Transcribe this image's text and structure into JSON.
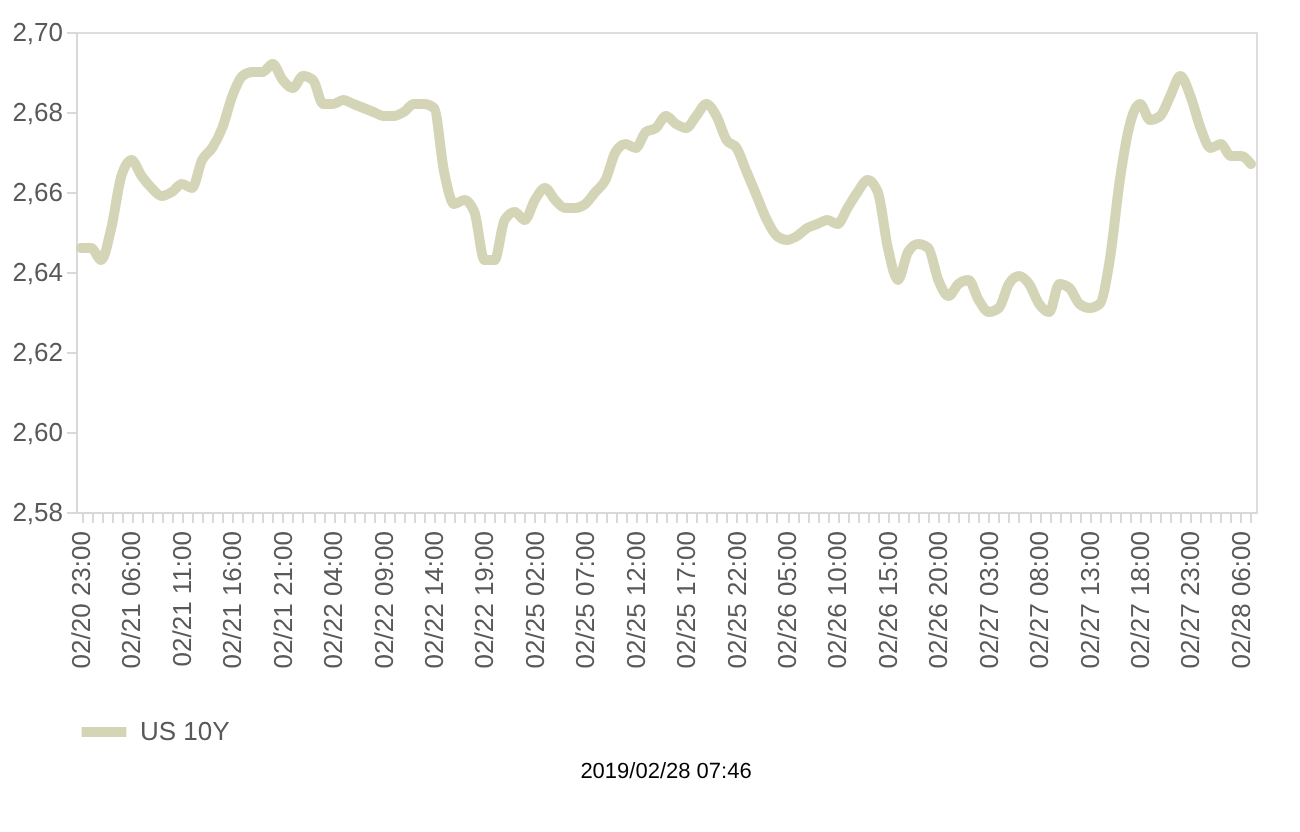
{
  "chart_data": {
    "type": "line",
    "categories": [
      "02/20 23:00",
      null,
      null,
      null,
      null,
      "02/21 06:00",
      null,
      null,
      null,
      null,
      "02/21 11:00",
      null,
      null,
      null,
      null,
      "02/21 16:00",
      null,
      null,
      null,
      null,
      "02/21 21:00",
      null,
      null,
      null,
      null,
      "02/22 04:00",
      null,
      null,
      null,
      null,
      "02/22 09:00",
      null,
      null,
      null,
      null,
      "02/22 14:00",
      null,
      null,
      null,
      null,
      "02/22 19:00",
      null,
      null,
      null,
      null,
      "02/25 02:00",
      null,
      null,
      null,
      null,
      "02/25 07:00",
      null,
      null,
      null,
      null,
      "02/25 12:00",
      null,
      null,
      null,
      null,
      "02/25 17:00",
      null,
      null,
      null,
      null,
      "02/25 22:00",
      null,
      null,
      null,
      null,
      "02/26 05:00",
      null,
      null,
      null,
      null,
      "02/26 10:00",
      null,
      null,
      null,
      null,
      "02/26 15:00",
      null,
      null,
      null,
      null,
      "02/26 20:00",
      null,
      null,
      null,
      null,
      "02/27 03:00",
      null,
      null,
      null,
      null,
      "02/27 08:00",
      null,
      null,
      null,
      null,
      "02/27 13:00",
      null,
      null,
      null,
      null,
      "02/27 18:00",
      null,
      null,
      null,
      null,
      "02/27 23:00",
      null,
      null,
      null,
      null,
      "02/28 06:00",
      null
    ],
    "series": [
      {
        "name": "US 10Y",
        "color": "#d4d5b6",
        "values": [
          2.646,
          2.646,
          2.643,
          2.651,
          2.664,
          2.668,
          2.664,
          2.661,
          2.659,
          2.66,
          2.662,
          2.661,
          2.668,
          2.671,
          2.676,
          2.684,
          2.689,
          2.69,
          2.69,
          2.692,
          2.688,
          2.686,
          2.689,
          2.688,
          2.682,
          2.682,
          2.683,
          2.682,
          2.681,
          2.68,
          2.679,
          2.679,
          2.68,
          2.682,
          2.682,
          2.681,
          2.665,
          2.657,
          2.658,
          2.655,
          2.643,
          2.643,
          2.653,
          2.655,
          2.653,
          2.658,
          2.661,
          2.658,
          2.656,
          2.656,
          2.657,
          2.66,
          2.663,
          2.67,
          2.672,
          2.671,
          2.675,
          2.676,
          2.679,
          2.677,
          2.676,
          2.679,
          2.682,
          2.679,
          2.673,
          2.671,
          2.665,
          2.659,
          2.653,
          2.649,
          2.648,
          2.649,
          2.651,
          2.652,
          2.653,
          2.652,
          2.656,
          2.66,
          2.663,
          2.66,
          2.646,
          2.638,
          2.645,
          2.647,
          2.646,
          2.638,
          2.634,
          2.637,
          2.638,
          2.633,
          2.63,
          2.631,
          2.637,
          2.639,
          2.637,
          2.632,
          2.63,
          2.637,
          2.636,
          2.632,
          2.631,
          2.632,
          2.643,
          2.663,
          2.677,
          2.682,
          2.678,
          2.679,
          2.684,
          2.689,
          2.684,
          2.676,
          2.671,
          2.672,
          2.669,
          2.669,
          2.667
        ]
      }
    ],
    "ylim": [
      2.58,
      2.7
    ],
    "yticks": [
      {
        "value": 2.58,
        "label": "2,58"
      },
      {
        "value": 2.6,
        "label": "2,60"
      },
      {
        "value": 2.62,
        "label": "2,62"
      },
      {
        "value": 2.64,
        "label": "2,64"
      },
      {
        "value": 2.66,
        "label": "2,66"
      },
      {
        "value": 2.68,
        "label": "2,68"
      },
      {
        "value": 2.7,
        "label": "2,70"
      }
    ],
    "legend": "bottom",
    "line_style": "solid",
    "marker": "none",
    "annotations": [
      "2019/02/28 07:46"
    ]
  }
}
